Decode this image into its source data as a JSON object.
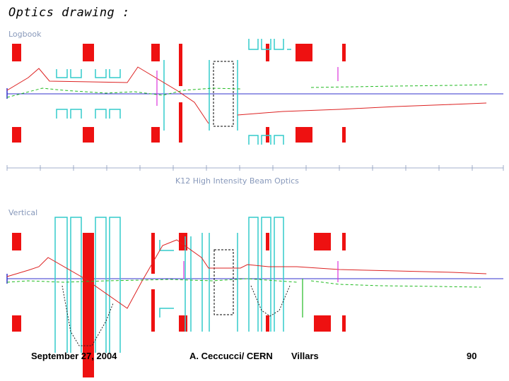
{
  "slide": {
    "title": "Optics drawing :",
    "footer": {
      "date": "September 27, 2004",
      "author": "A. Ceccucci/ CERN",
      "place": "Villars",
      "page": "90"
    }
  },
  "diagram": {
    "panels": [
      {
        "label_faint": "Logbook",
        "subtitle_faint": "K12 High Intensity Beam Optics"
      },
      {
        "label_faint": "Vertical"
      }
    ],
    "colors": {
      "magnet": "#ee1111",
      "quad_outline": "#33cccc",
      "trajectory": "#dd2222",
      "axis": "#3333cc",
      "green": "#22bb22",
      "magenta": "#dd33dd",
      "faint_text": "#8899bb"
    }
  }
}
